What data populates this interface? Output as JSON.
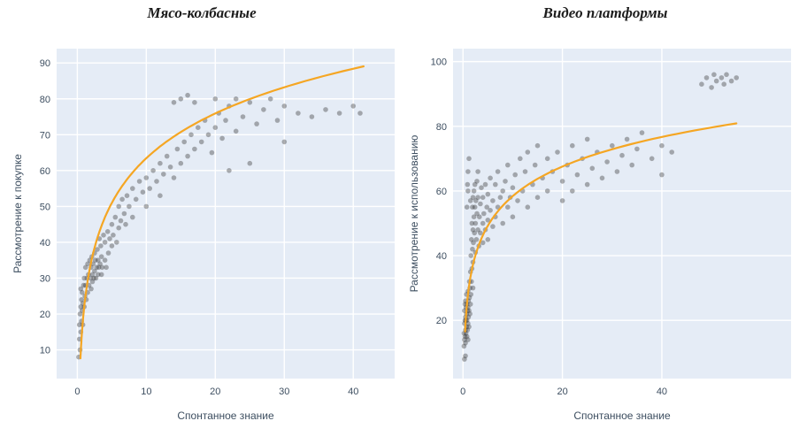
{
  "chart_data": [
    {
      "type": "scatter",
      "title": "Мясо-колбасные",
      "xlabel": "Спонтанное знание",
      "ylabel": "Рассмотрение к покупке",
      "plot_bg": "#e5ecf6",
      "grid": true,
      "legend": "none",
      "point_color": "#333333",
      "point_opacity": 0.38,
      "trend_color": "#f5a623",
      "xlim": [
        -3,
        46
      ],
      "ylim": [
        2,
        94
      ],
      "xticks": [
        0,
        10,
        20,
        30,
        40
      ],
      "yticks": [
        10,
        20,
        30,
        40,
        50,
        60,
        70,
        80,
        90
      ],
      "trend": {
        "type": "log",
        "a": 18,
        "b": 22,
        "x_start": 0.45,
        "x_end": 41.5
      },
      "points": [
        [
          0.2,
          8
        ],
        [
          0.3,
          13
        ],
        [
          0.3,
          17
        ],
        [
          0.4,
          10
        ],
        [
          0.4,
          20
        ],
        [
          0.5,
          15
        ],
        [
          0.5,
          22
        ],
        [
          0.5,
          27
        ],
        [
          0.6,
          18
        ],
        [
          0.6,
          24
        ],
        [
          0.7,
          21
        ],
        [
          0.7,
          26
        ],
        [
          0.8,
          17
        ],
        [
          0.8,
          23
        ],
        [
          0.9,
          28
        ],
        [
          1,
          22
        ],
        [
          1,
          30
        ],
        [
          1.1,
          25
        ],
        [
          1.2,
          28
        ],
        [
          1.2,
          33
        ],
        [
          1.3,
          24
        ],
        [
          1.4,
          30
        ],
        [
          1.5,
          26
        ],
        [
          1.5,
          34
        ],
        [
          1.6,
          31
        ],
        [
          1.7,
          28
        ],
        [
          1.8,
          35
        ],
        [
          1.9,
          30
        ],
        [
          2,
          27
        ],
        [
          2,
          33
        ],
        [
          2.1,
          36
        ],
        [
          2.2,
          31
        ],
        [
          2.2,
          29
        ],
        [
          2.3,
          34
        ],
        [
          2.4,
          30
        ],
        [
          2.5,
          37
        ],
        [
          2.5,
          32
        ],
        [
          2.6,
          35
        ],
        [
          2.7,
          30
        ],
        [
          2.8,
          33
        ],
        [
          2.9,
          38
        ],
        [
          3,
          31
        ],
        [
          3,
          35
        ],
        [
          3.1,
          33
        ],
        [
          3.2,
          41
        ],
        [
          3.3,
          34
        ],
        [
          3.4,
          39
        ],
        [
          3.5,
          31
        ],
        [
          3.5,
          36
        ],
        [
          3.6,
          33
        ],
        [
          3.8,
          42
        ],
        [
          4,
          35
        ],
        [
          4,
          40
        ],
        [
          4.2,
          33
        ],
        [
          4.4,
          43
        ],
        [
          4.5,
          37
        ],
        [
          4.7,
          41
        ],
        [
          5,
          39
        ],
        [
          5,
          45
        ],
        [
          5.2,
          42
        ],
        [
          5.5,
          47
        ],
        [
          5.7,
          40
        ],
        [
          6,
          44
        ],
        [
          6,
          50
        ],
        [
          6.3,
          46
        ],
        [
          6.5,
          52
        ],
        [
          6.8,
          48
        ],
        [
          7,
          45
        ],
        [
          7.2,
          53
        ],
        [
          7.5,
          50
        ],
        [
          8,
          47
        ],
        [
          8,
          55
        ],
        [
          8.5,
          52
        ],
        [
          9,
          57
        ],
        [
          9.5,
          54
        ],
        [
          10,
          50
        ],
        [
          10,
          58
        ],
        [
          10.5,
          55
        ],
        [
          11,
          60
        ],
        [
          11.5,
          57
        ],
        [
          12,
          53
        ],
        [
          12,
          62
        ],
        [
          12.5,
          59
        ],
        [
          13,
          64
        ],
        [
          13.5,
          61
        ],
        [
          14,
          58
        ],
        [
          14,
          79
        ],
        [
          14.5,
          66
        ],
        [
          15,
          62
        ],
        [
          15,
          80
        ],
        [
          15.5,
          68
        ],
        [
          16,
          64
        ],
        [
          16,
          81
        ],
        [
          16.5,
          70
        ],
        [
          17,
          66
        ],
        [
          17,
          79
        ],
        [
          17.5,
          72
        ],
        [
          18,
          68
        ],
        [
          18.5,
          74
        ],
        [
          19,
          70
        ],
        [
          19.5,
          65
        ],
        [
          20,
          72
        ],
        [
          20,
          80
        ],
        [
          20.5,
          76
        ],
        [
          21,
          69
        ],
        [
          21.5,
          74
        ],
        [
          22,
          78
        ],
        [
          22,
          60
        ],
        [
          23,
          71
        ],
        [
          23,
          80
        ],
        [
          24,
          75
        ],
        [
          25,
          79
        ],
        [
          25,
          62
        ],
        [
          26,
          73
        ],
        [
          27,
          77
        ],
        [
          28,
          80
        ],
        [
          29,
          74
        ],
        [
          30,
          78
        ],
        [
          30,
          68
        ],
        [
          32,
          76
        ],
        [
          34,
          75
        ],
        [
          36,
          77
        ],
        [
          38,
          76
        ],
        [
          40,
          78
        ],
        [
          41,
          76
        ]
      ]
    },
    {
      "type": "scatter",
      "title": "Видео платформы",
      "xlabel": "Спонтанное знание",
      "ylabel": "Рассмотрение к использованию",
      "plot_bg": "#e5ecf6",
      "grid": true,
      "legend": "none",
      "point_color": "#333333",
      "point_opacity": 0.38,
      "trend_color": "#f5a623",
      "xlim": [
        -2,
        66
      ],
      "ylim": [
        2,
        104
      ],
      "xticks": [
        0,
        20,
        40
      ],
      "yticks": [
        20,
        40,
        60,
        80,
        100
      ],
      "trend": {
        "type": "log",
        "a": 13.2,
        "b": 28,
        "x_start": 0.42,
        "x_end": 55
      },
      "points": [
        [
          0.3,
          8
        ],
        [
          0.5,
          9
        ],
        [
          0.2,
          12
        ],
        [
          0.2,
          16
        ],
        [
          0.3,
          14
        ],
        [
          0.3,
          19
        ],
        [
          0.3,
          23
        ],
        [
          0.4,
          15
        ],
        [
          0.4,
          20
        ],
        [
          0.4,
          25
        ],
        [
          0.5,
          13
        ],
        [
          0.5,
          17
        ],
        [
          0.5,
          21
        ],
        [
          0.5,
          26
        ],
        [
          0.6,
          16
        ],
        [
          0.6,
          20
        ],
        [
          0.6,
          24
        ],
        [
          0.7,
          18
        ],
        [
          0.7,
          22
        ],
        [
          0.7,
          28
        ],
        [
          0.8,
          15
        ],
        [
          0.8,
          20
        ],
        [
          0.8,
          25
        ],
        [
          0.8,
          55
        ],
        [
          0.9,
          17
        ],
        [
          0.9,
          23
        ],
        [
          0.9,
          62
        ],
        [
          1,
          14
        ],
        [
          1,
          19
        ],
        [
          1,
          24
        ],
        [
          1,
          29
        ],
        [
          1,
          60
        ],
        [
          1,
          66
        ],
        [
          1.1,
          21
        ],
        [
          1.1,
          26
        ],
        [
          1.2,
          18
        ],
        [
          1.2,
          23
        ],
        [
          1.2,
          70
        ],
        [
          1.3,
          27
        ],
        [
          1.3,
          32
        ],
        [
          1.4,
          22
        ],
        [
          1.4,
          30
        ],
        [
          1.5,
          25
        ],
        [
          1.5,
          35
        ],
        [
          1.5,
          57
        ],
        [
          1.6,
          28
        ],
        [
          1.6,
          40
        ],
        [
          1.7,
          32
        ],
        [
          1.7,
          45
        ],
        [
          1.8,
          36
        ],
        [
          1.8,
          50
        ],
        [
          1.9,
          42
        ],
        [
          1.9,
          55
        ],
        [
          2,
          30
        ],
        [
          2,
          38
        ],
        [
          2,
          48
        ],
        [
          2,
          58
        ],
        [
          2.1,
          44
        ],
        [
          2.2,
          52
        ],
        [
          2.2,
          60
        ],
        [
          2.3,
          47
        ],
        [
          2.4,
          55
        ],
        [
          2.4,
          62
        ],
        [
          2.5,
          41
        ],
        [
          2.5,
          50
        ],
        [
          2.6,
          57
        ],
        [
          2.7,
          45
        ],
        [
          2.8,
          53
        ],
        [
          2.8,
          63
        ],
        [
          3,
          48
        ],
        [
          3,
          58
        ],
        [
          3,
          66
        ],
        [
          3.2,
          43
        ],
        [
          3.3,
          52
        ],
        [
          3.5,
          47
        ],
        [
          3.5,
          56
        ],
        [
          3.7,
          61
        ],
        [
          4,
          44
        ],
        [
          4,
          50
        ],
        [
          4,
          58
        ],
        [
          4.2,
          53
        ],
        [
          4.5,
          48
        ],
        [
          4.5,
          62
        ],
        [
          4.8,
          55
        ],
        [
          5,
          45
        ],
        [
          5,
          51
        ],
        [
          5,
          59
        ],
        [
          5.5,
          54
        ],
        [
          5.5,
          64
        ],
        [
          6,
          49
        ],
        [
          6,
          57
        ],
        [
          6.5,
          52
        ],
        [
          6.5,
          62
        ],
        [
          7,
          55
        ],
        [
          7,
          66
        ],
        [
          7.5,
          58
        ],
        [
          8,
          50
        ],
        [
          8,
          60
        ],
        [
          8.5,
          63
        ],
        [
          9,
          55
        ],
        [
          9,
          68
        ],
        [
          9.5,
          58
        ],
        [
          10,
          52
        ],
        [
          10,
          61
        ],
        [
          10.5,
          65
        ],
        [
          11,
          57
        ],
        [
          11.5,
          70
        ],
        [
          12,
          60
        ],
        [
          12.5,
          66
        ],
        [
          13,
          55
        ],
        [
          13,
          72
        ],
        [
          14,
          62
        ],
        [
          14.5,
          68
        ],
        [
          15,
          58
        ],
        [
          15,
          74
        ],
        [
          16,
          64
        ],
        [
          17,
          60
        ],
        [
          17,
          70
        ],
        [
          18,
          66
        ],
        [
          19,
          72
        ],
        [
          20,
          57
        ],
        [
          20,
          63
        ],
        [
          21,
          68
        ],
        [
          22,
          60
        ],
        [
          22,
          74
        ],
        [
          23,
          65
        ],
        [
          24,
          70
        ],
        [
          25,
          62
        ],
        [
          25,
          76
        ],
        [
          26,
          67
        ],
        [
          27,
          72
        ],
        [
          28,
          64
        ],
        [
          29,
          69
        ],
        [
          30,
          74
        ],
        [
          31,
          66
        ],
        [
          32,
          71
        ],
        [
          33,
          76
        ],
        [
          34,
          68
        ],
        [
          35,
          73
        ],
        [
          36,
          78
        ],
        [
          38,
          70
        ],
        [
          40,
          65
        ],
        [
          40,
          74
        ],
        [
          42,
          72
        ],
        [
          48,
          93
        ],
        [
          49,
          95
        ],
        [
          50,
          92
        ],
        [
          50.5,
          96
        ],
        [
          51,
          94
        ],
        [
          52,
          95
        ],
        [
          52.5,
          93
        ],
        [
          53,
          96
        ],
        [
          54,
          94
        ],
        [
          55,
          95
        ]
      ]
    }
  ]
}
